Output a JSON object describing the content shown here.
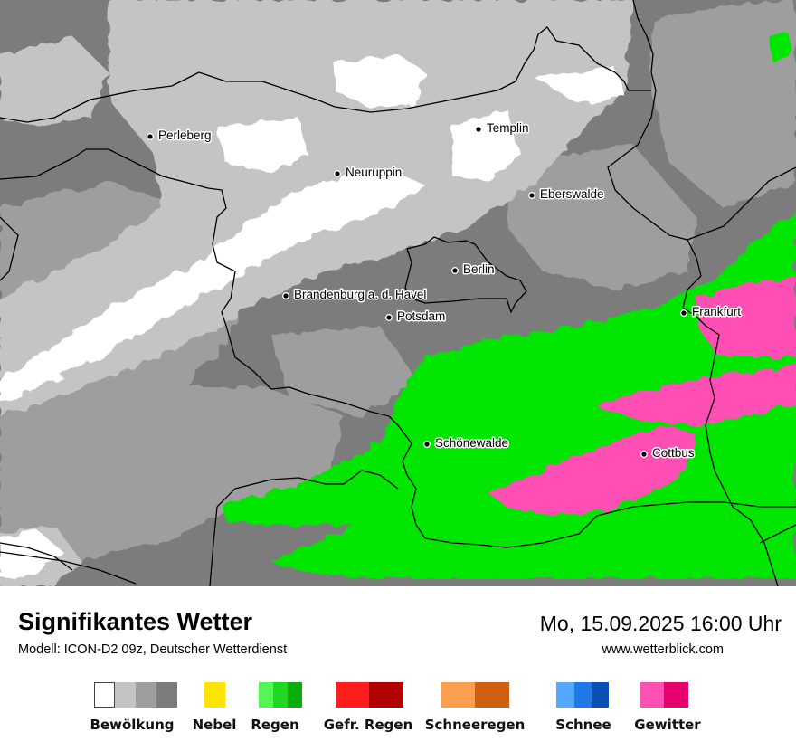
{
  "header": {
    "title": "Signifikantes Wetter",
    "model": "Modell: ICON-D2 09z, Deutscher Wetterdienst",
    "datetime": "Mo, 15.09.2025 16:00 Uhr",
    "website": "www.wetterblick.com"
  },
  "cities": [
    {
      "name": "Perleberg"
    },
    {
      "name": "Templin"
    },
    {
      "name": "Neuruppin"
    },
    {
      "name": "Eberswalde"
    },
    {
      "name": "Berlin"
    },
    {
      "name": "Brandenburg a. d. Havel"
    },
    {
      "name": "Potsdam"
    },
    {
      "name": "Frankfurt"
    },
    {
      "name": "Schönewalde"
    },
    {
      "name": "Cottbus"
    }
  ],
  "legend": [
    {
      "label": "Bewölkung",
      "colors": [
        "#ffffff",
        "#c4c4c4",
        "#9e9e9e",
        "#7c7c7c"
      ]
    },
    {
      "label": "Nebel",
      "colors": [
        "#ffe600"
      ]
    },
    {
      "label": "Regen",
      "colors": [
        "#55f555",
        "#1fd81f",
        "#0aae0a"
      ]
    },
    {
      "label": "Gefr. Regen",
      "colors": [
        "#ff1e1e",
        "#b00000"
      ]
    },
    {
      "label": "Schneeregen",
      "colors": [
        "#ffa050",
        "#d06010"
      ]
    },
    {
      "label": "Schnee",
      "colors": [
        "#55a8ff",
        "#1e78e6",
        "#0a4fb4"
      ]
    },
    {
      "label": "Gewitter",
      "colors": [
        "#ff50b4",
        "#e6006e"
      ]
    }
  ],
  "colors": {
    "cloud_light": "#c4c4c4",
    "cloud_mid": "#9e9e9e",
    "cloud_dark": "#7c7c7c",
    "clear": "#ffffff",
    "rain": "#00e600",
    "thunderstorm": "#ff50b4",
    "border": "#000000"
  }
}
